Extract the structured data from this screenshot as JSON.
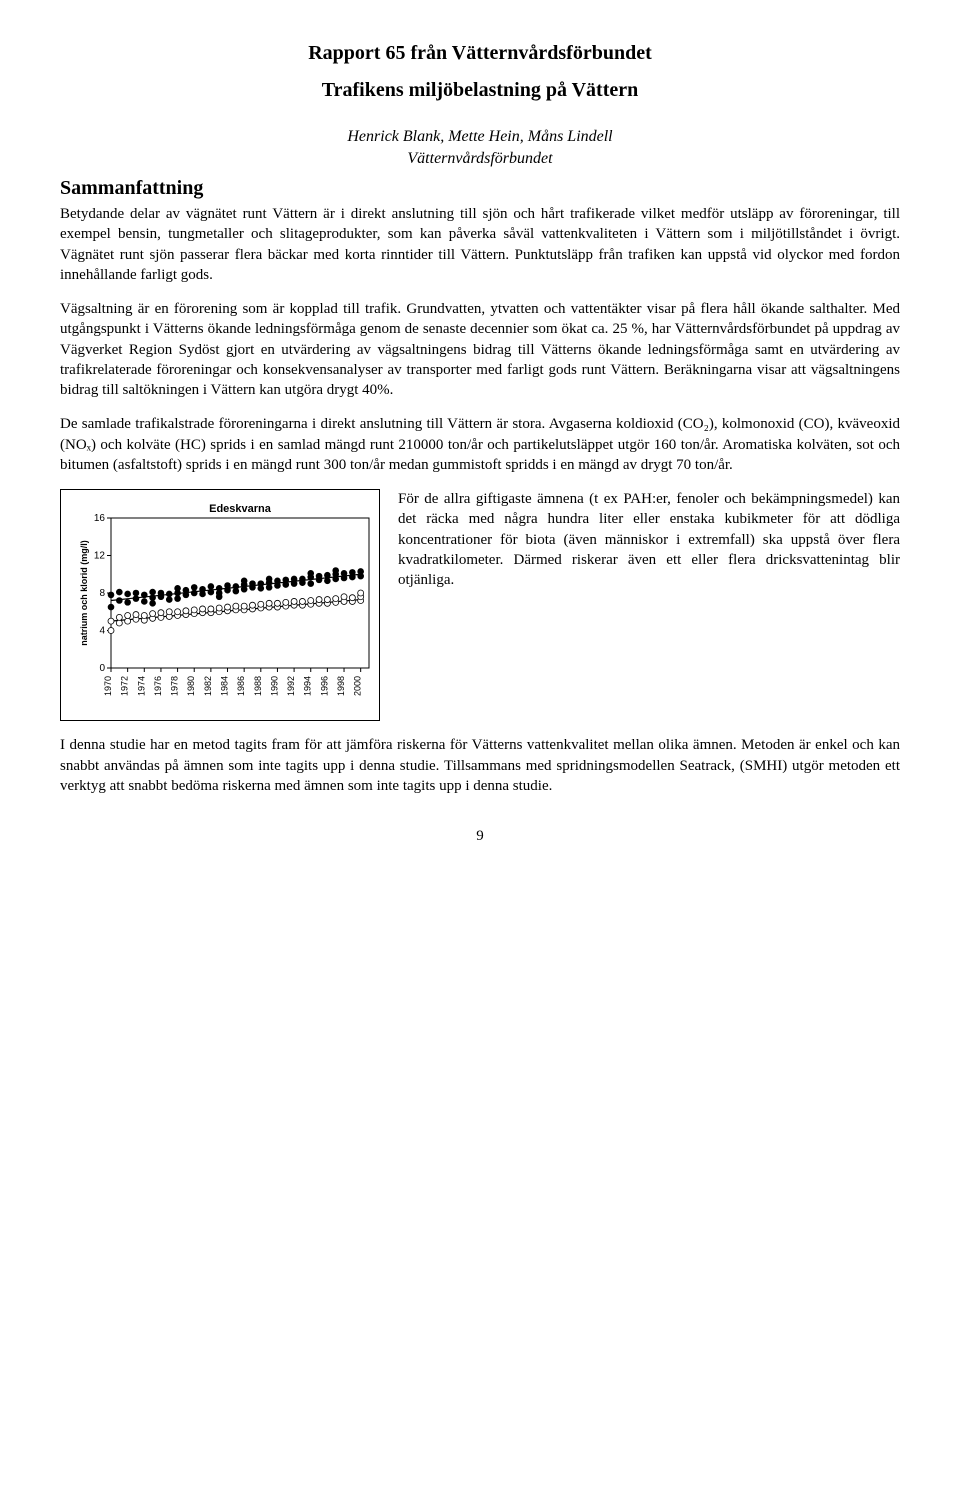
{
  "series_title": "Rapport 65 från Vätternvårdsförbundet",
  "main_title": "Trafikens miljöbelastning på Vättern",
  "authors": "Henrick Blank, Mette Hein, Måns Lindell",
  "affiliation": "Vätternvårdsförbundet",
  "section_heading": "Sammanfattning",
  "paragraphs": {
    "p1": "Betydande delar av vägnätet runt Vättern är i direkt anslutning till sjön och hårt trafikerade vilket medför utsläpp av föroreningar, till exempel bensin, tungmetaller och slitageprodukter, som kan påverka såväl vattenkvaliteten i Vättern som i miljötillståndet i övrigt. Vägnätet runt sjön passerar flera bäckar med korta rinntider till Vättern. Punktutsläpp från trafiken kan uppstå vid olyckor med fordon innehållande farligt gods.",
    "p2": "Vägsaltning är en förorening som är kopplad till trafik. Grundvatten, ytvatten och vattentäkter visar på flera håll ökande salthalter. Med utgångspunkt i Vätterns ökande ledningsförmåga genom de senaste decennier som ökat ca. 25 %, har Vätternvårdsförbundet på uppdrag av Vägverket Region Sydöst gjort en utvärdering av vägsaltningens bidrag till Vätterns ökande ledningsförmåga samt en utvärdering av trafikrelaterade föroreningar och konsekvensanalyser av transporter med farligt gods runt Vättern. Beräkningarna visar att vägsaltningens bidrag till saltökningen i Vättern kan utgöra drygt 40%.",
    "p3": "De samlade trafikalstrade föroreningarna i direkt anslutning till Vättern är stora. Avgaserna koldioxid (CO₂), kolmonoxid (CO), kväveoxid (NOₓ) och kolväte (HC) sprids i en samlad mängd runt 210000 ton/år och partikelutsläppet utgör 160 ton/år. Aromatiska kolväten, sot och bitumen (asfaltstoft) sprids i en mängd runt 300 ton/år medan gummistoft spridds i en mängd av drygt 70 ton/år.",
    "side": "För de allra giftigaste ämnena (t ex PAH:er, fenoler och bekämpningsmedel) kan det räcka med några hundra liter eller enstaka kubikmeter för att dödliga koncentrationer för biota (även människor i extremfall) ska uppstå över flera kvadratkilometer. Därmed riskerar även ett eller flera dricksvattenintag blir otjänliga.",
    "p4": "I denna studie har en metod tagits fram för att jämföra riskerna för Vätterns vattenkvalitet mellan olika ämnen. Metoden är enkel och kan snabbt användas på ämnen som inte tagits upp i denna studie. Tillsammans med spridningsmodellen Seatrack, (SMHI) utgör metoden ett verktyg att snabbt bedöma riskerna med ämnen som inte tagits upp i denna studie."
  },
  "chart": {
    "type": "scatter-with-trend",
    "title": "Edeskvarna",
    "ylabel": "natrium och klorid (mg/l)",
    "xlim": [
      1970,
      2001
    ],
    "ylim": [
      0,
      16
    ],
    "yticks": [
      0,
      4,
      8,
      12,
      16
    ],
    "xticks": [
      1970,
      1972,
      1974,
      1976,
      1978,
      1980,
      1982,
      1984,
      1986,
      1988,
      1990,
      1992,
      1994,
      1996,
      1998,
      2000
    ],
    "background_color": "#ffffff",
    "border_color": "#000000",
    "marker_size": 3,
    "series_filled": {
      "color": "#000000",
      "fill": "#000000",
      "points": [
        [
          1970,
          6.5
        ],
        [
          1970,
          7.8
        ],
        [
          1971,
          7.2
        ],
        [
          1971,
          8.1
        ],
        [
          1972,
          7.0
        ],
        [
          1972,
          7.9
        ],
        [
          1973,
          7.4
        ],
        [
          1973,
          8.0
        ],
        [
          1974,
          7.1
        ],
        [
          1974,
          7.8
        ],
        [
          1975,
          6.9
        ],
        [
          1975,
          7.5
        ],
        [
          1975,
          8.1
        ],
        [
          1976,
          7.6
        ],
        [
          1976,
          8.0
        ],
        [
          1977,
          7.3
        ],
        [
          1977,
          7.9
        ],
        [
          1978,
          7.4
        ],
        [
          1978,
          8.0
        ],
        [
          1978,
          8.5
        ],
        [
          1979,
          7.8
        ],
        [
          1979,
          8.3
        ],
        [
          1980,
          8.0
        ],
        [
          1980,
          8.6
        ],
        [
          1981,
          7.9
        ],
        [
          1981,
          8.4
        ],
        [
          1982,
          8.1
        ],
        [
          1982,
          8.7
        ],
        [
          1983,
          8.0
        ],
        [
          1983,
          8.5
        ],
        [
          1983,
          7.6
        ],
        [
          1984,
          8.3
        ],
        [
          1984,
          8.8
        ],
        [
          1985,
          8.2
        ],
        [
          1985,
          8.7
        ],
        [
          1986,
          8.4
        ],
        [
          1986,
          8.9
        ],
        [
          1986,
          9.3
        ],
        [
          1987,
          8.6
        ],
        [
          1987,
          9.0
        ],
        [
          1988,
          8.5
        ],
        [
          1988,
          9.0
        ],
        [
          1989,
          8.6
        ],
        [
          1989,
          9.1
        ],
        [
          1989,
          9.5
        ],
        [
          1990,
          8.8
        ],
        [
          1990,
          9.3
        ],
        [
          1991,
          8.9
        ],
        [
          1991,
          9.4
        ],
        [
          1992,
          9.0
        ],
        [
          1992,
          9.5
        ],
        [
          1993,
          9.1
        ],
        [
          1993,
          9.5
        ],
        [
          1994,
          9.0
        ],
        [
          1994,
          9.7
        ],
        [
          1994,
          10.1
        ],
        [
          1995,
          9.4
        ],
        [
          1995,
          9.8
        ],
        [
          1996,
          9.3
        ],
        [
          1996,
          9.9
        ],
        [
          1997,
          9.5
        ],
        [
          1997,
          10.0
        ],
        [
          1997,
          10.4
        ],
        [
          1998,
          9.6
        ],
        [
          1998,
          10.1
        ],
        [
          1999,
          9.7
        ],
        [
          1999,
          10.2
        ],
        [
          2000,
          9.8
        ],
        [
          2000,
          10.3
        ]
      ],
      "trend": {
        "x1": 1970,
        "y1": 7.2,
        "x2": 2000,
        "y2": 10.0,
        "width": 1.2
      }
    },
    "series_open": {
      "color": "#000000",
      "fill": "none",
      "points": [
        [
          1970,
          4.0
        ],
        [
          1970,
          5.0
        ],
        [
          1971,
          4.8
        ],
        [
          1971,
          5.4
        ],
        [
          1972,
          5.0
        ],
        [
          1972,
          5.6
        ],
        [
          1973,
          5.2
        ],
        [
          1973,
          5.7
        ],
        [
          1974,
          5.1
        ],
        [
          1974,
          5.6
        ],
        [
          1975,
          5.3
        ],
        [
          1975,
          5.8
        ],
        [
          1976,
          5.4
        ],
        [
          1976,
          5.9
        ],
        [
          1977,
          5.5
        ],
        [
          1977,
          6.0
        ],
        [
          1978,
          5.6
        ],
        [
          1978,
          6.0
        ],
        [
          1979,
          5.7
        ],
        [
          1979,
          6.1
        ],
        [
          1980,
          5.8
        ],
        [
          1980,
          6.2
        ],
        [
          1981,
          5.9
        ],
        [
          1981,
          6.3
        ],
        [
          1982,
          5.9
        ],
        [
          1982,
          6.3
        ],
        [
          1983,
          6.0
        ],
        [
          1983,
          6.4
        ],
        [
          1984,
          6.1
        ],
        [
          1984,
          6.5
        ],
        [
          1985,
          6.2
        ],
        [
          1985,
          6.6
        ],
        [
          1986,
          6.2
        ],
        [
          1986,
          6.6
        ],
        [
          1987,
          6.3
        ],
        [
          1987,
          6.7
        ],
        [
          1988,
          6.4
        ],
        [
          1988,
          6.8
        ],
        [
          1989,
          6.5
        ],
        [
          1989,
          6.9
        ],
        [
          1990,
          6.5
        ],
        [
          1990,
          6.9
        ],
        [
          1991,
          6.6
        ],
        [
          1991,
          7.0
        ],
        [
          1992,
          6.7
        ],
        [
          1992,
          7.1
        ],
        [
          1993,
          6.7
        ],
        [
          1993,
          7.1
        ],
        [
          1994,
          6.8
        ],
        [
          1994,
          7.2
        ],
        [
          1995,
          6.9
        ],
        [
          1995,
          7.3
        ],
        [
          1996,
          6.9
        ],
        [
          1996,
          7.3
        ],
        [
          1997,
          7.0
        ],
        [
          1997,
          7.4
        ],
        [
          1998,
          7.1
        ],
        [
          1998,
          7.6
        ],
        [
          1999,
          7.1
        ],
        [
          1999,
          7.5
        ],
        [
          2000,
          7.2
        ],
        [
          2000,
          7.6
        ],
        [
          2000,
          8.0
        ]
      ],
      "trend": {
        "x1": 1970,
        "y1": 5.0,
        "x2": 2000,
        "y2": 7.3,
        "width": 1.2
      }
    }
  },
  "page_number": "9"
}
